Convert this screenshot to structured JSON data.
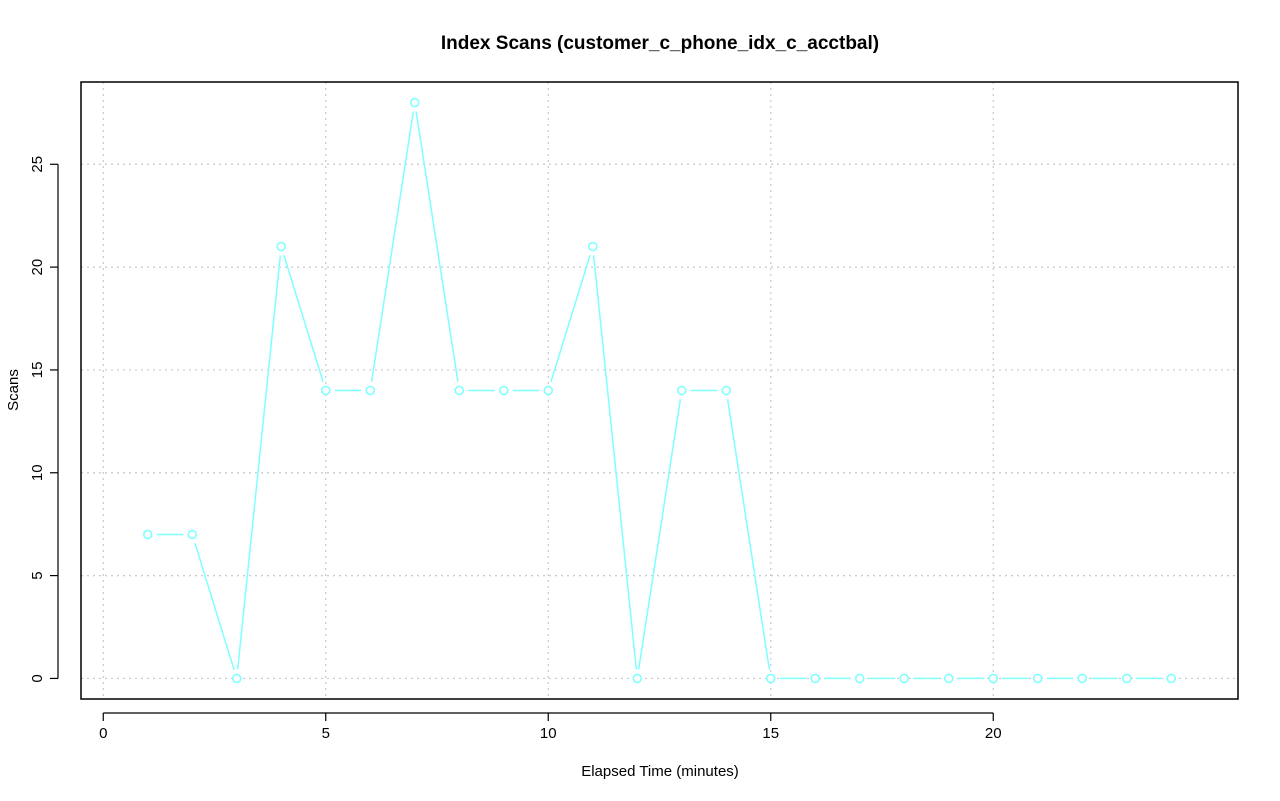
{
  "chart_data": {
    "type": "line",
    "title": "Index Scans (customer_c_phone_idx_c_acctbal)",
    "xlabel": "Elapsed Time (minutes)",
    "ylabel": "Scans",
    "xlim": [
      -0.5,
      25.5
    ],
    "ylim": [
      -1,
      29
    ],
    "x_ticks": [
      0,
      5,
      10,
      15,
      20
    ],
    "y_ticks": [
      0,
      5,
      10,
      15,
      20,
      25
    ],
    "grid": true,
    "series_color": "#7fffff",
    "series": [
      {
        "x": [
          1,
          2,
          3,
          4,
          5,
          6,
          7,
          8,
          9,
          10,
          11,
          12,
          13,
          14,
          15,
          16,
          17,
          18,
          19,
          20,
          21,
          22,
          23,
          24
        ],
        "values": [
          7,
          7,
          0,
          21,
          14,
          14,
          28,
          14,
          14,
          14,
          21,
          0,
          14,
          14,
          0,
          0,
          0,
          0,
          0,
          0,
          0,
          0,
          0,
          0
        ]
      }
    ]
  }
}
